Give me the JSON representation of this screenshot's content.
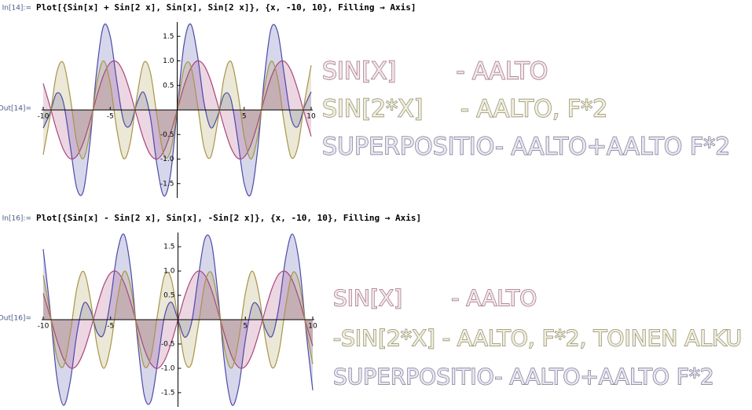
{
  "chart_data": [
    {
      "type": "line",
      "input_label": "In[14]:=",
      "input": "Plot[{Sin[x] + Sin[2 x], Sin[x], Sin[2 x]}, {x, -10, 10}, Filling → Axis]",
      "output_label": "Out[14]=",
      "annotations": [
        "SIN[X]        - AALTO",
        "SIN[2*X]     - AALTO, F*2",
        "SUPERPOSITIO- AALTO+AALTO F*2"
      ],
      "filling": "axis",
      "x": [
        -10,
        -9.5,
        -9,
        -8.5,
        -8,
        -7.5,
        -7,
        -6.5,
        -6,
        -5.5,
        -5,
        -4.5,
        -4,
        -3.5,
        -3,
        -2.5,
        -2,
        -1.5,
        -1,
        -0.5,
        0,
        0.5,
        1,
        1.5,
        2,
        2.5,
        3,
        3.5,
        4,
        4.5,
        5,
        5.5,
        6,
        6.5,
        7,
        7.5,
        8,
        8.5,
        9,
        9.5,
        10
      ],
      "series": [
        {
          "color": "#4a4aa8",
          "values": [
            -0.37,
            -0.07,
            0.34,
            0.16,
            -0.7,
            -1.59,
            -1.65,
            -0.64,
            0.82,
            1.71,
            1.5,
            0.57,
            -0.23,
            -0.31,
            0.14,
            0.36,
            -0.15,
            -1.14,
            -1.75,
            -1.32,
            0,
            1.32,
            1.75,
            1.14,
            0.15,
            -0.36,
            -0.14,
            0.31,
            0.23,
            -0.57,
            -1.5,
            -1.71,
            -0.82,
            0.64,
            1.65,
            1.59,
            0.7,
            -0.16,
            -0.34,
            0.07,
            0.37
          ]
        },
        {
          "color": "#a8467a",
          "values": [
            0.54,
            0.08,
            -0.41,
            -0.8,
            -0.99,
            -0.94,
            -0.66,
            -0.22,
            0.28,
            0.71,
            0.96,
            0.98,
            0.76,
            0.35,
            -0.14,
            -0.6,
            -0.91,
            -1.0,
            -0.84,
            -0.48,
            0,
            0.48,
            0.84,
            1.0,
            0.91,
            0.6,
            0.14,
            -0.35,
            -0.76,
            -0.98,
            -0.96,
            -0.71,
            -0.28,
            0.22,
            0.66,
            0.94,
            0.99,
            0.8,
            0.41,
            -0.08,
            -0.54
          ]
        },
        {
          "color": "#a89448",
          "values": [
            -0.91,
            -0.15,
            0.75,
            0.96,
            0.29,
            -0.65,
            -0.99,
            -0.42,
            0.54,
            1.0,
            0.54,
            -0.41,
            -0.99,
            -0.66,
            0.28,
            0.96,
            0.76,
            -0.14,
            -0.91,
            -0.84,
            0,
            0.84,
            0.91,
            0.14,
            -0.76,
            -0.96,
            -0.28,
            0.66,
            0.99,
            0.41,
            -0.54,
            -1.0,
            -0.54,
            0.42,
            0.99,
            0.65,
            -0.29,
            -0.96,
            -0.75,
            0.15,
            0.91
          ]
        }
      ],
      "xlim": [
        -10,
        10
      ],
      "ylim": [
        -1.76,
        1.76
      ],
      "xticks": [
        -10,
        -5,
        5,
        10
      ],
      "yticks": [
        -1.5,
        {
          "value": -1,
          "label": "-1.0"
        },
        -0.5,
        0.5,
        {
          "value": 1,
          "label": "1.0"
        },
        1.5
      ]
    },
    {
      "type": "line",
      "input_label": "In[16]:=",
      "input": "Plot[{Sin[x] - Sin[2 x], Sin[x], -Sin[2 x]}, {x, -10, 10}, Filling → Axis]",
      "output_label": "Out[16]=",
      "annotations": [
        "SIN[X]       - AALTO",
        "-SIN[2*X] - AALTO, F*2, TOINEN ALKU",
        "SUPERPOSITIO- AALTO+AALTO F*2"
      ],
      "filling": "axis",
      "x": [
        -10,
        -9.5,
        -9,
        -8.5,
        -8,
        -7.5,
        -7,
        -6.5,
        -6,
        -5.5,
        -5,
        -4.5,
        -4,
        -3.5,
        -3,
        -2.5,
        -2,
        -1.5,
        -1,
        -0.5,
        0,
        0.5,
        1,
        1.5,
        2,
        2.5,
        3,
        3.5,
        4,
        4.5,
        5,
        5.5,
        6,
        6.5,
        7,
        7.5,
        8,
        8.5,
        9,
        9.5,
        10
      ],
      "series": [
        {
          "color": "#4a4aa8",
          "values": [
            1.45,
            0.23,
            -1.16,
            -1.76,
            -1.28,
            -0.29,
            0.33,
            0.2,
            -0.26,
            -0.29,
            0.42,
            1.39,
            1.75,
            1.01,
            -0.42,
            -1.56,
            -1.67,
            -0.86,
            0.07,
            0.36,
            0,
            -0.36,
            -0.07,
            0.86,
            1.67,
            1.56,
            0.42,
            -1.01,
            -1.75,
            -1.39,
            -0.42,
            0.29,
            0.26,
            -0.2,
            -0.33,
            0.29,
            1.28,
            1.76,
            1.16,
            -0.23,
            -1.45
          ]
        },
        {
          "color": "#a8467a",
          "values": [
            0.54,
            0.08,
            -0.41,
            -0.8,
            -0.99,
            -0.94,
            -0.66,
            -0.22,
            0.28,
            0.71,
            0.96,
            0.98,
            0.76,
            0.35,
            -0.14,
            -0.6,
            -0.91,
            -1.0,
            -0.84,
            -0.48,
            0,
            0.48,
            0.84,
            1.0,
            0.91,
            0.6,
            0.14,
            -0.35,
            -0.76,
            -0.98,
            -0.96,
            -0.71,
            -0.28,
            0.22,
            0.66,
            0.94,
            0.99,
            0.8,
            0.41,
            -0.08,
            -0.54
          ]
        },
        {
          "color": "#a89448",
          "values": [
            0.91,
            0.15,
            -0.75,
            -0.96,
            -0.29,
            0.65,
            0.99,
            0.42,
            -0.54,
            -1.0,
            -0.54,
            0.41,
            0.99,
            0.66,
            -0.28,
            -0.96,
            -0.76,
            0.14,
            0.91,
            0.84,
            0,
            -0.84,
            -0.91,
            -0.14,
            0.76,
            0.96,
            0.28,
            -0.66,
            -0.99,
            -0.41,
            0.54,
            1.0,
            0.54,
            -0.42,
            -0.99,
            -0.65,
            0.29,
            0.96,
            0.75,
            -0.15,
            -0.91
          ]
        }
      ],
      "xlim": [
        -10,
        10
      ],
      "ylim": [
        -1.76,
        1.76
      ],
      "xticks": [
        -10,
        -5,
        5,
        10
      ],
      "yticks": [
        -1.5,
        {
          "value": -1,
          "label": "-1.0"
        },
        -0.5,
        0.5,
        {
          "value": 1,
          "label": "1.0"
        },
        1.5
      ]
    }
  ]
}
